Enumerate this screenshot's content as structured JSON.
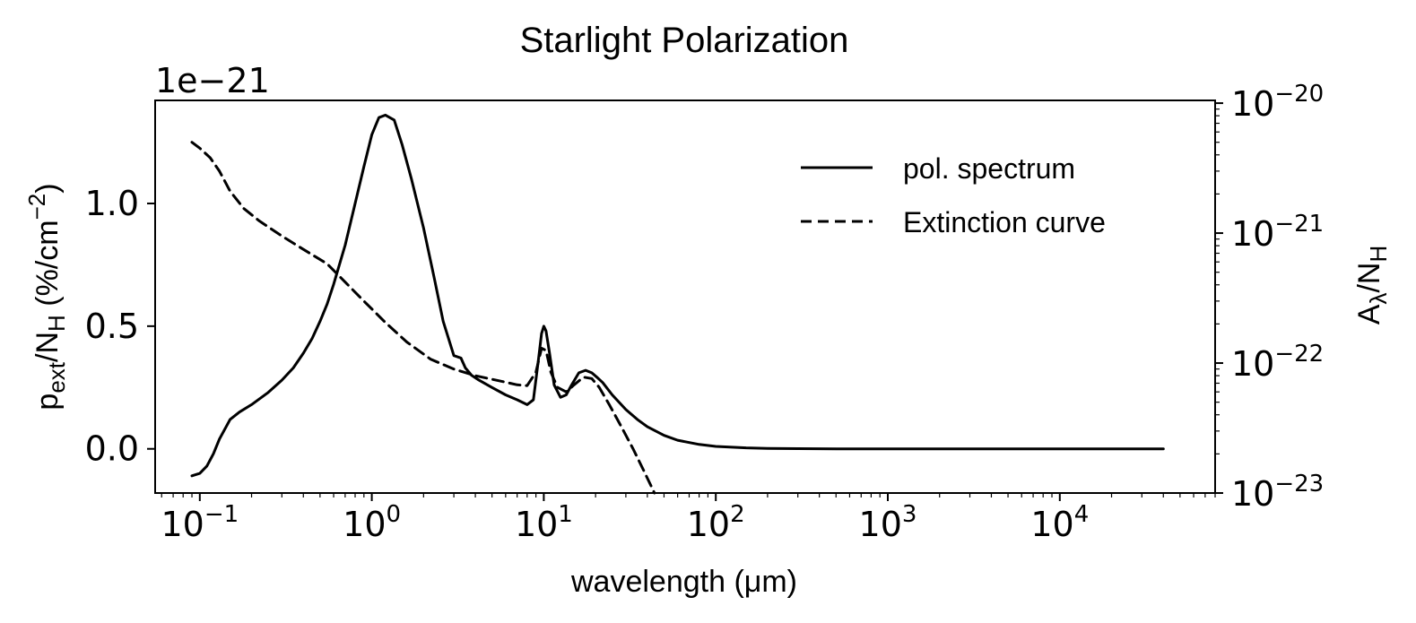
{
  "chart_data": {
    "type": "line",
    "title": "Starlight Polarization",
    "xlabel": "wavelength (μm)",
    "xscale": "log",
    "xlim": [
      0.055,
      80000
    ],
    "x_ticks": [
      {
        "base": "10",
        "exp": "−1",
        "value": 0.1
      },
      {
        "base": "10",
        "exp": "0",
        "value": 1
      },
      {
        "base": "10",
        "exp": "1",
        "value": 10
      },
      {
        "base": "10",
        "exp": "2",
        "value": 100
      },
      {
        "base": "10",
        "exp": "3",
        "value": 1000
      },
      {
        "base": "10",
        "exp": "4",
        "value": 10000
      }
    ],
    "y_left": {
      "label_main": "p",
      "label_sub": "ext",
      "label_mid": "/N",
      "label_sub2": "H",
      "label_tail": " (%/cm",
      "label_sup": "−2",
      "label_end": ")",
      "offset_text": "1e−21",
      "ylim": [
        -0.18,
        1.42
      ],
      "ticks": [
        {
          "label": "0.0",
          "value": 0.0
        },
        {
          "label": "0.5",
          "value": 0.5
        },
        {
          "label": "1.0",
          "value": 1.0
        }
      ]
    },
    "y_right": {
      "label_main": "A",
      "label_sub": "λ",
      "label_mid": "/N",
      "label_sub2": "H",
      "scale": "log",
      "ylim": [
        1e-23,
        1.05e-20
      ],
      "ticks": [
        {
          "base": "10",
          "exp": "−23",
          "value": 1e-23
        },
        {
          "base": "10",
          "exp": "−22",
          "value": 1e-22
        },
        {
          "base": "10",
          "exp": "−21",
          "value": 1e-21
        },
        {
          "base": "10",
          "exp": "−20",
          "value": 1e-20
        }
      ]
    },
    "legend_position": "top-right",
    "series": [
      {
        "name": "pol. spectrum",
        "style": "solid",
        "axis": "left",
        "x": [
          0.09,
          0.1,
          0.11,
          0.12,
          0.13,
          0.15,
          0.17,
          0.2,
          0.25,
          0.3,
          0.35,
          0.4,
          0.45,
          0.5,
          0.55,
          0.6,
          0.7,
          0.8,
          0.9,
          1.0,
          1.1,
          1.2,
          1.35,
          1.5,
          1.7,
          2.0,
          2.3,
          2.6,
          3.0,
          3.3,
          3.5,
          3.8,
          4.2,
          5.0,
          6.0,
          7.0,
          8.0,
          8.7,
          9.3,
          9.7,
          10.0,
          10.3,
          10.8,
          11.5,
          12.5,
          13.5,
          14.5,
          16.0,
          17.5,
          19.0,
          20.5,
          22.0,
          25.0,
          30.0,
          35.0,
          40.0,
          50.0,
          60.0,
          80.0,
          100.0,
          150.0,
          200.0,
          300.0,
          500.0,
          1000.0,
          3000.0,
          10000.0,
          40000.0
        ],
        "y": [
          -0.11,
          -0.1,
          -0.07,
          -0.02,
          0.04,
          0.12,
          0.15,
          0.18,
          0.23,
          0.28,
          0.33,
          0.39,
          0.45,
          0.52,
          0.59,
          0.67,
          0.83,
          1.0,
          1.15,
          1.28,
          1.35,
          1.36,
          1.34,
          1.24,
          1.1,
          0.9,
          0.7,
          0.52,
          0.38,
          0.37,
          0.33,
          0.3,
          0.28,
          0.25,
          0.22,
          0.2,
          0.18,
          0.2,
          0.36,
          0.47,
          0.5,
          0.48,
          0.39,
          0.26,
          0.21,
          0.22,
          0.26,
          0.31,
          0.32,
          0.31,
          0.29,
          0.27,
          0.22,
          0.16,
          0.12,
          0.09,
          0.055,
          0.035,
          0.018,
          0.01,
          0.004,
          0.002,
          0.001,
          0.0,
          0.0,
          0.0,
          0.0,
          0.0
        ]
      },
      {
        "name": "Extinction curve",
        "style": "dashed",
        "axis": "right",
        "x": [
          0.09,
          0.1,
          0.115,
          0.13,
          0.15,
          0.18,
          0.22,
          0.3,
          0.4,
          0.55,
          0.7,
          0.9,
          1.2,
          1.6,
          2.2,
          3.0,
          4.0,
          5.5,
          7.0,
          8.0,
          9.0,
          9.7,
          10.3,
          11.0,
          12.0,
          13.5,
          15.0,
          17.0,
          19.0,
          21.0,
          24.0,
          28.0,
          33.0,
          38.0,
          44.0
        ],
        "y": [
          5e-21,
          4.5e-21,
          3.8e-21,
          3e-21,
          2.1e-21,
          1.55e-21,
          1.25e-21,
          9.5e-22,
          7.5e-22,
          5.8e-22,
          4.2e-22,
          3e-22,
          2.05e-22,
          1.45e-22,
          1.07e-22,
          9e-23,
          8e-23,
          7.3e-23,
          6.8e-23,
          6.7e-23,
          8.5e-23,
          1.3e-22,
          1.25e-22,
          8.5e-23,
          6.5e-23,
          6e-23,
          6.8e-23,
          7.8e-23,
          7.6e-23,
          6.5e-23,
          4.8e-23,
          3.3e-23,
          2.2e-23,
          1.5e-23,
          1e-23
        ]
      }
    ]
  }
}
